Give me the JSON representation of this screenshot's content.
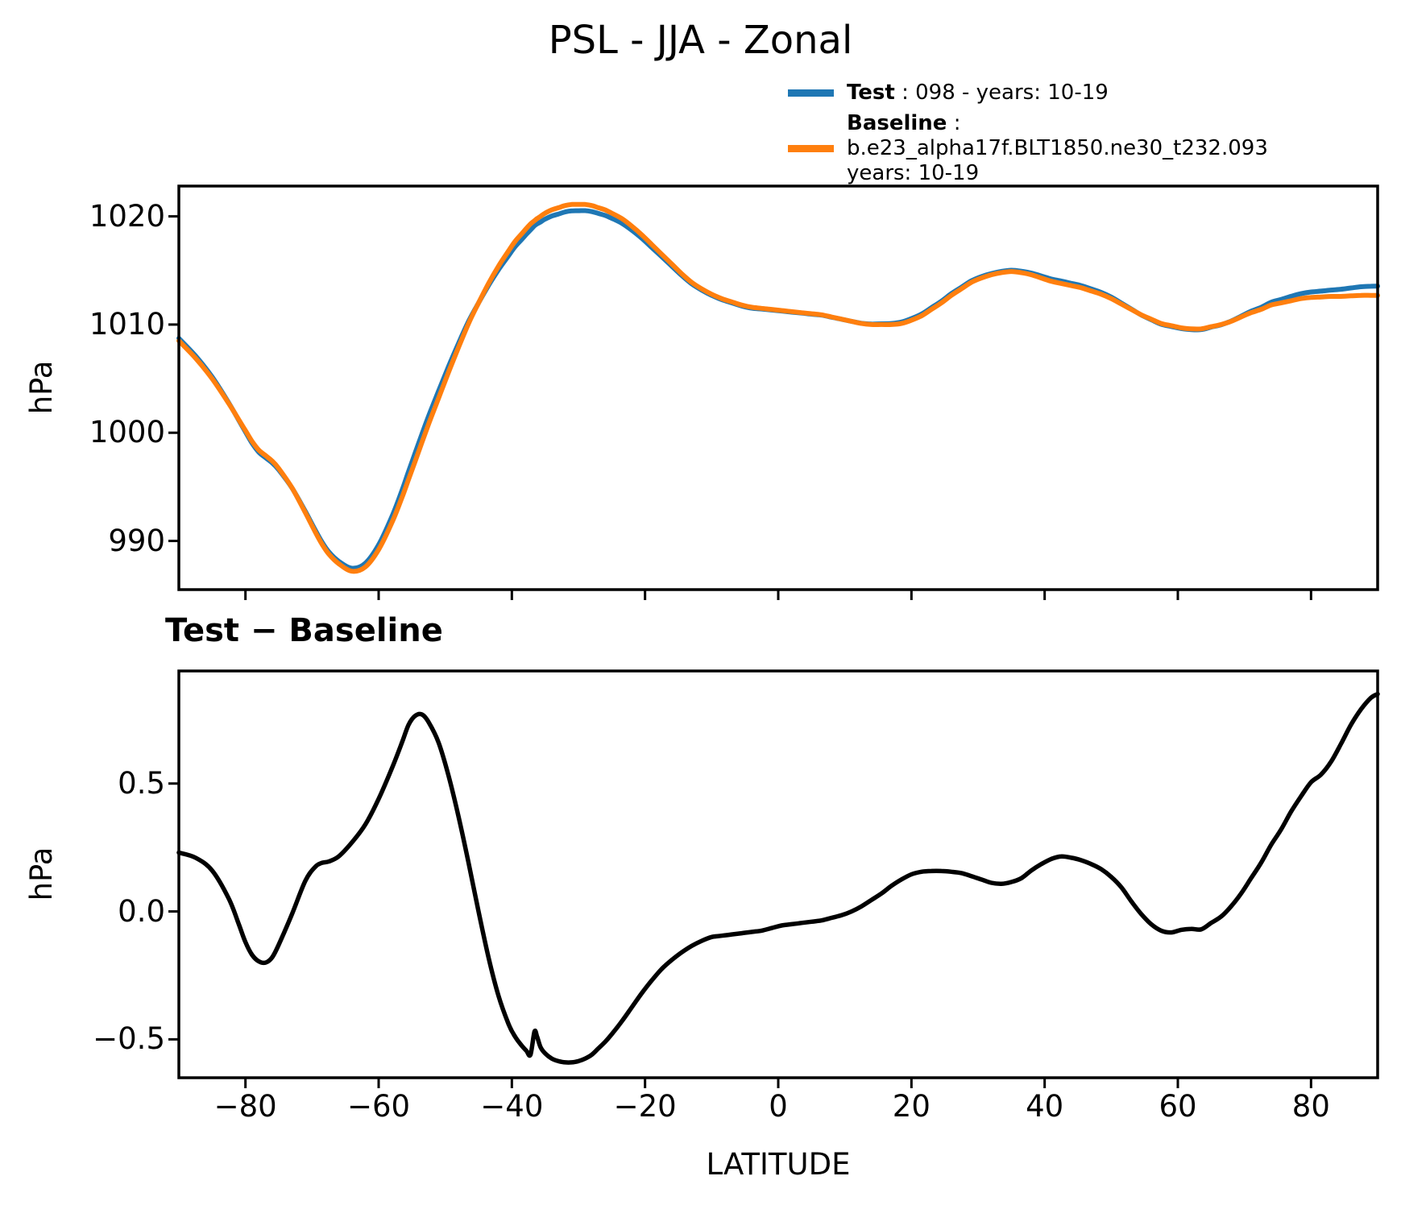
{
  "title": "PSL - JJA - Zonal",
  "legend": {
    "items": [
      {
        "label": "Test",
        "text": " : 098 - years: 10-19",
        "color": "#1f77b4"
      },
      {
        "label": "Baseline",
        "text": " : b.e23_alpha17f.BLT1850.ne30_t232.093",
        "text2": "years: 10-19",
        "color": "#ff7f0e"
      }
    ]
  },
  "panels": {
    "top": {
      "ylabel": "hPa"
    },
    "bottom": {
      "title": "Test − Baseline",
      "ylabel": "hPa",
      "xlabel": "LATITUDE"
    }
  },
  "chart_data": [
    {
      "type": "line",
      "title": "PSL - JJA - Zonal",
      "xlabel": "",
      "ylabel": "hPa",
      "xlim": [
        -90,
        90
      ],
      "ylim": [
        985.5,
        1022.8
      ],
      "yticks": [
        990,
        1000,
        1010,
        1020
      ],
      "ytick_labels": [
        "990",
        "1000",
        "1010",
        "1020"
      ],
      "xticks": [
        -80,
        -60,
        -40,
        -20,
        0,
        20,
        40,
        60,
        80
      ],
      "grid": false,
      "legend_position": "above-right",
      "x": [
        -90,
        -87.5,
        -85,
        -82.5,
        -81,
        -80,
        -79,
        -78,
        -77,
        -76,
        -75,
        -73,
        -71,
        -69.5,
        -68.5,
        -67.5,
        -66,
        -64,
        -62,
        -60,
        -58,
        -56.5,
        -55.5,
        -54.5,
        -53.5,
        -52.5,
        -51,
        -49.5,
        -48,
        -46.5,
        -45,
        -43.5,
        -42,
        -40.5,
        -39.5,
        -38.5,
        -37.8,
        -37.2,
        -36.6,
        -36.2,
        -35.7,
        -35,
        -34,
        -33,
        -32,
        -31,
        -30,
        -29,
        -28,
        -27,
        -26,
        -25,
        -23.5,
        -22,
        -20.5,
        -19,
        -17.5,
        -16,
        -14.5,
        -13,
        -11.5,
        -10,
        -8.5,
        -7,
        -5.5,
        -4,
        -2.5,
        -1,
        0.5,
        2,
        3.5,
        5,
        6.5,
        8,
        9.5,
        11,
        12.5,
        14,
        15.5,
        17,
        18.5,
        20,
        21.5,
        23,
        24.5,
        26,
        27.5,
        29,
        30.5,
        32,
        33.5,
        35,
        36.5,
        38,
        39.5,
        41,
        42.5,
        44,
        45.5,
        47,
        48.5,
        50,
        51.5,
        53,
        54.5,
        56,
        57.5,
        59,
        60.5,
        62,
        63.5,
        65,
        66.5,
        68,
        69.5,
        71,
        72.5,
        74,
        75.5,
        77,
        78.5,
        80,
        81.5,
        83,
        84.5,
        86,
        87.5,
        89,
        90
      ],
      "series": [
        {
          "name": "Test : 098 - years: 10-19",
          "color": "#1f77b4",
          "values": [
            1008.73,
            1007.11,
            1005.16,
            1002.75,
            1001.15,
            1000.08,
            999.03,
            998.21,
            997.7,
            997.22,
            996.57,
            994.89,
            992.72,
            990.98,
            989.89,
            989.0,
            988.12,
            987.47,
            987.94,
            989.64,
            992.26,
            994.66,
            996.43,
            998.17,
            999.87,
            1001.54,
            1003.86,
            1006.13,
            1008.27,
            1010.29,
            1012.0,
            1013.62,
            1015.07,
            1016.36,
            1017.21,
            1017.88,
            1018.36,
            1018.74,
            1019.13,
            1019.31,
            1019.47,
            1019.75,
            1020.03,
            1020.22,
            1020.41,
            1020.51,
            1020.52,
            1020.53,
            1020.44,
            1020.27,
            1020.09,
            1019.82,
            1019.37,
            1018.73,
            1017.98,
            1017.13,
            1016.28,
            1015.41,
            1014.54,
            1013.77,
            1013.19,
            1012.7,
            1012.31,
            1012.01,
            1011.72,
            1011.52,
            1011.43,
            1011.34,
            1011.25,
            1011.15,
            1011.06,
            1010.96,
            1010.87,
            1010.68,
            1010.49,
            1010.3,
            1010.12,
            1010.05,
            1010.07,
            1010.1,
            1010.23,
            1010.55,
            1010.96,
            1011.56,
            1012.16,
            1012.86,
            1013.45,
            1014.04,
            1014.43,
            1014.71,
            1014.91,
            1015.02,
            1014.93,
            1014.76,
            1014.49,
            1014.21,
            1014.02,
            1013.81,
            1013.6,
            1013.29,
            1012.97,
            1012.54,
            1011.99,
            1011.44,
            1010.89,
            1010.45,
            1010.03,
            1009.82,
            1009.63,
            1009.53,
            1009.53,
            1009.76,
            1009.98,
            1010.32,
            1010.77,
            1011.23,
            1011.59,
            1012.06,
            1012.32,
            1012.61,
            1012.85,
            1013.01,
            1013.09,
            1013.19,
            1013.26,
            1013.38,
            1013.49,
            1013.54,
            1013.55
          ]
        },
        {
          "name": "Baseline : b.e23_alpha17f.BLT1850.ne30_t232.093 years: 10-19",
          "color": "#ff7f0e",
          "values": [
            1008.5,
            1006.9,
            1005.0,
            1002.7,
            1001.2,
            1000.2,
            999.2,
            998.4,
            997.9,
            997.4,
            996.7,
            994.9,
            992.6,
            990.8,
            989.7,
            988.8,
            987.9,
            987.2,
            987.6,
            989.2,
            991.7,
            994.0,
            995.7,
            997.4,
            999.1,
            1000.8,
            1003.2,
            1005.6,
            1007.9,
            1010.1,
            1012.0,
            1013.8,
            1015.4,
            1016.8,
            1017.7,
            1018.4,
            1018.9,
            1019.3,
            1019.6,
            1019.8,
            1020.0,
            1020.3,
            1020.6,
            1020.8,
            1021.0,
            1021.1,
            1021.1,
            1021.1,
            1021.0,
            1020.8,
            1020.6,
            1020.3,
            1019.8,
            1019.1,
            1018.3,
            1017.4,
            1016.5,
            1015.6,
            1014.7,
            1013.9,
            1013.3,
            1012.8,
            1012.4,
            1012.1,
            1011.8,
            1011.6,
            1011.5,
            1011.4,
            1011.3,
            1011.2,
            1011.1,
            1011.0,
            1010.9,
            1010.7,
            1010.5,
            1010.3,
            1010.1,
            1010.0,
            1010.0,
            1010.0,
            1010.1,
            1010.4,
            1010.8,
            1011.4,
            1012.0,
            1012.7,
            1013.3,
            1013.9,
            1014.3,
            1014.6,
            1014.8,
            1014.9,
            1014.8,
            1014.6,
            1014.3,
            1014.0,
            1013.8,
            1013.6,
            1013.4,
            1013.1,
            1012.8,
            1012.4,
            1011.9,
            1011.4,
            1010.9,
            1010.5,
            1010.1,
            1009.9,
            1009.7,
            1009.6,
            1009.6,
            1009.8,
            1010.0,
            1010.3,
            1010.7,
            1011.1,
            1011.4,
            1011.8,
            1012.0,
            1012.2,
            1012.4,
            1012.5,
            1012.55,
            1012.6,
            1012.6,
            1012.65,
            1012.7,
            1012.7,
            1012.7
          ]
        }
      ]
    },
    {
      "type": "line",
      "title": "Test − Baseline",
      "xlabel": "LATITUDE",
      "ylabel": "hPa",
      "xlim": [
        -90,
        90
      ],
      "ylim": [
        -0.65,
        0.94
      ],
      "yticks": [
        -0.5,
        0.0,
        0.5
      ],
      "ytick_labels": [
        "−0.5",
        "0.0",
        "0.5"
      ],
      "xticks": [
        -80,
        -60,
        -40,
        -20,
        0,
        20,
        40,
        60,
        80
      ],
      "xtick_labels": [
        "−80",
        "−60",
        "−40",
        "−20",
        "0",
        "20",
        "40",
        "60",
        "80"
      ],
      "grid": false,
      "x": [
        -90,
        -87.5,
        -85,
        -82.5,
        -81,
        -80,
        -79,
        -78,
        -77,
        -76,
        -75,
        -73,
        -71,
        -69.5,
        -68.5,
        -67.5,
        -66,
        -64,
        -62,
        -60,
        -58,
        -56.5,
        -55.5,
        -54.5,
        -53.5,
        -52.5,
        -51,
        -49.5,
        -48,
        -46.5,
        -45,
        -43.5,
        -42,
        -40.5,
        -39.5,
        -38.5,
        -37.8,
        -37.2,
        -36.6,
        -36.2,
        -35.7,
        -35,
        -34,
        -33,
        -32,
        -31,
        -30,
        -29,
        -28,
        -27,
        -26,
        -25,
        -23.5,
        -22,
        -20.5,
        -19,
        -17.5,
        -16,
        -14.5,
        -13,
        -11.5,
        -10,
        -8.5,
        -7,
        -5.5,
        -4,
        -2.5,
        -1,
        0.5,
        2,
        3.5,
        5,
        6.5,
        8,
        9.5,
        11,
        12.5,
        14,
        15.5,
        17,
        18.5,
        20,
        21.5,
        23,
        24.5,
        26,
        27.5,
        29,
        30.5,
        32,
        33.5,
        35,
        36.5,
        38,
        39.5,
        41,
        42.5,
        44,
        45.5,
        47,
        48.5,
        50,
        51.5,
        53,
        54.5,
        56,
        57.5,
        59,
        60.5,
        62,
        63.5,
        65,
        66.5,
        68,
        69.5,
        71,
        72.5,
        74,
        75.5,
        77,
        78.5,
        80,
        81.5,
        83,
        84.5,
        86,
        87.5,
        89,
        90
      ],
      "series": [
        {
          "name": "Test − Baseline",
          "color": "#000000",
          "values": [
            0.23,
            0.21,
            0.16,
            0.05,
            -0.05,
            -0.12,
            -0.17,
            -0.195,
            -0.2,
            -0.18,
            -0.13,
            -0.01,
            0.12,
            0.175,
            0.19,
            0.195,
            0.215,
            0.27,
            0.34,
            0.44,
            0.56,
            0.66,
            0.73,
            0.765,
            0.77,
            0.74,
            0.66,
            0.53,
            0.37,
            0.19,
            0.0,
            -0.18,
            -0.33,
            -0.44,
            -0.49,
            -0.525,
            -0.545,
            -0.56,
            -0.47,
            -0.49,
            -0.53,
            -0.555,
            -0.575,
            -0.585,
            -0.59,
            -0.59,
            -0.585,
            -0.575,
            -0.56,
            -0.535,
            -0.51,
            -0.48,
            -0.43,
            -0.375,
            -0.32,
            -0.27,
            -0.225,
            -0.19,
            -0.16,
            -0.135,
            -0.115,
            -0.1,
            -0.095,
            -0.09,
            -0.085,
            -0.08,
            -0.075,
            -0.065,
            -0.055,
            -0.05,
            -0.045,
            -0.04,
            -0.035,
            -0.025,
            -0.015,
            0.0,
            0.02,
            0.045,
            0.07,
            0.1,
            0.125,
            0.145,
            0.155,
            0.158,
            0.158,
            0.155,
            0.15,
            0.138,
            0.125,
            0.112,
            0.108,
            0.115,
            0.13,
            0.16,
            0.185,
            0.205,
            0.215,
            0.21,
            0.2,
            0.185,
            0.165,
            0.135,
            0.095,
            0.04,
            -0.01,
            -0.05,
            -0.075,
            -0.082,
            -0.072,
            -0.068,
            -0.07,
            -0.045,
            -0.02,
            0.02,
            0.07,
            0.13,
            0.19,
            0.26,
            0.32,
            0.39,
            0.45,
            0.505,
            0.535,
            0.585,
            0.655,
            0.73,
            0.79,
            0.835,
            0.85
          ]
        }
      ]
    }
  ]
}
